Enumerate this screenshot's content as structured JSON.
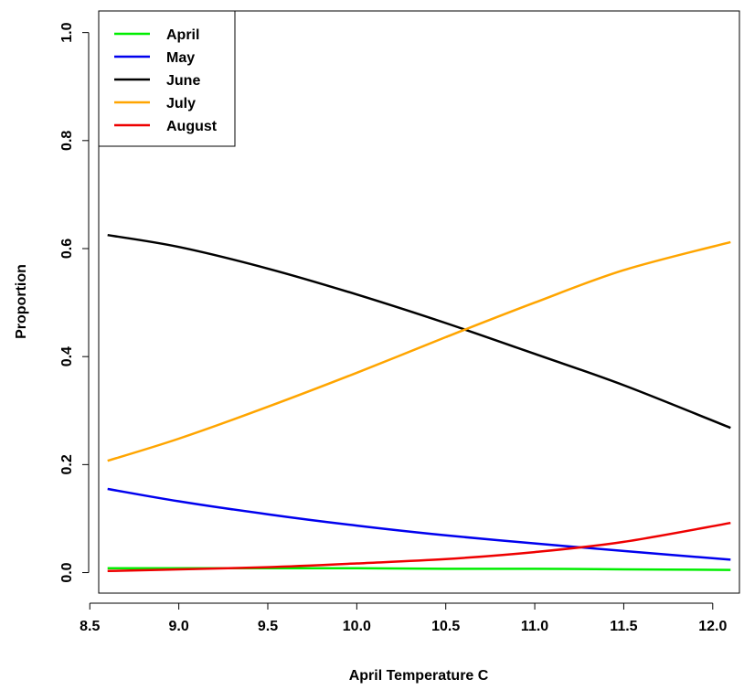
{
  "chart_data": {
    "type": "line",
    "title": "",
    "xlabel": "April Temperature C",
    "ylabel": "Proportion",
    "xlim": [
      8.55,
      12.15
    ],
    "ylim": [
      -0.038,
      1.04
    ],
    "x_ticks": [
      8.5,
      9.0,
      9.5,
      10.0,
      10.5,
      11.0,
      11.5,
      12.0
    ],
    "x_tick_labels": [
      "8.5",
      "9.0",
      "9.5",
      "10.0",
      "10.5",
      "11.0",
      "11.5",
      "12.0"
    ],
    "y_ticks": [
      0.0,
      0.2,
      0.4,
      0.6,
      0.8,
      1.0
    ],
    "y_tick_labels": [
      "0.0",
      "0.2",
      "0.4",
      "0.6",
      "0.8",
      "1.0"
    ],
    "grid": false,
    "legend_position": "top-left",
    "x": [
      8.6,
      9.0,
      9.5,
      10.0,
      10.5,
      11.0,
      11.5,
      12.1
    ],
    "series": [
      {
        "name": "April",
        "color": "#00ee00",
        "values": [
          0.008,
          0.008,
          0.008,
          0.008,
          0.007,
          0.007,
          0.006,
          0.005
        ]
      },
      {
        "name": "May",
        "color": "#0000ee",
        "values": [
          0.155,
          0.132,
          0.108,
          0.087,
          0.069,
          0.054,
          0.04,
          0.024
        ]
      },
      {
        "name": "June",
        "color": "#000000",
        "values": [
          0.625,
          0.603,
          0.563,
          0.515,
          0.462,
          0.405,
          0.347,
          0.268
        ]
      },
      {
        "name": "July",
        "color": "#ffa500",
        "values": [
          0.207,
          0.248,
          0.307,
          0.37,
          0.436,
          0.5,
          0.56,
          0.612
        ]
      },
      {
        "name": "August",
        "color": "#ee0000",
        "values": [
          0.003,
          0.006,
          0.01,
          0.017,
          0.025,
          0.038,
          0.057,
          0.092
        ]
      }
    ]
  }
}
